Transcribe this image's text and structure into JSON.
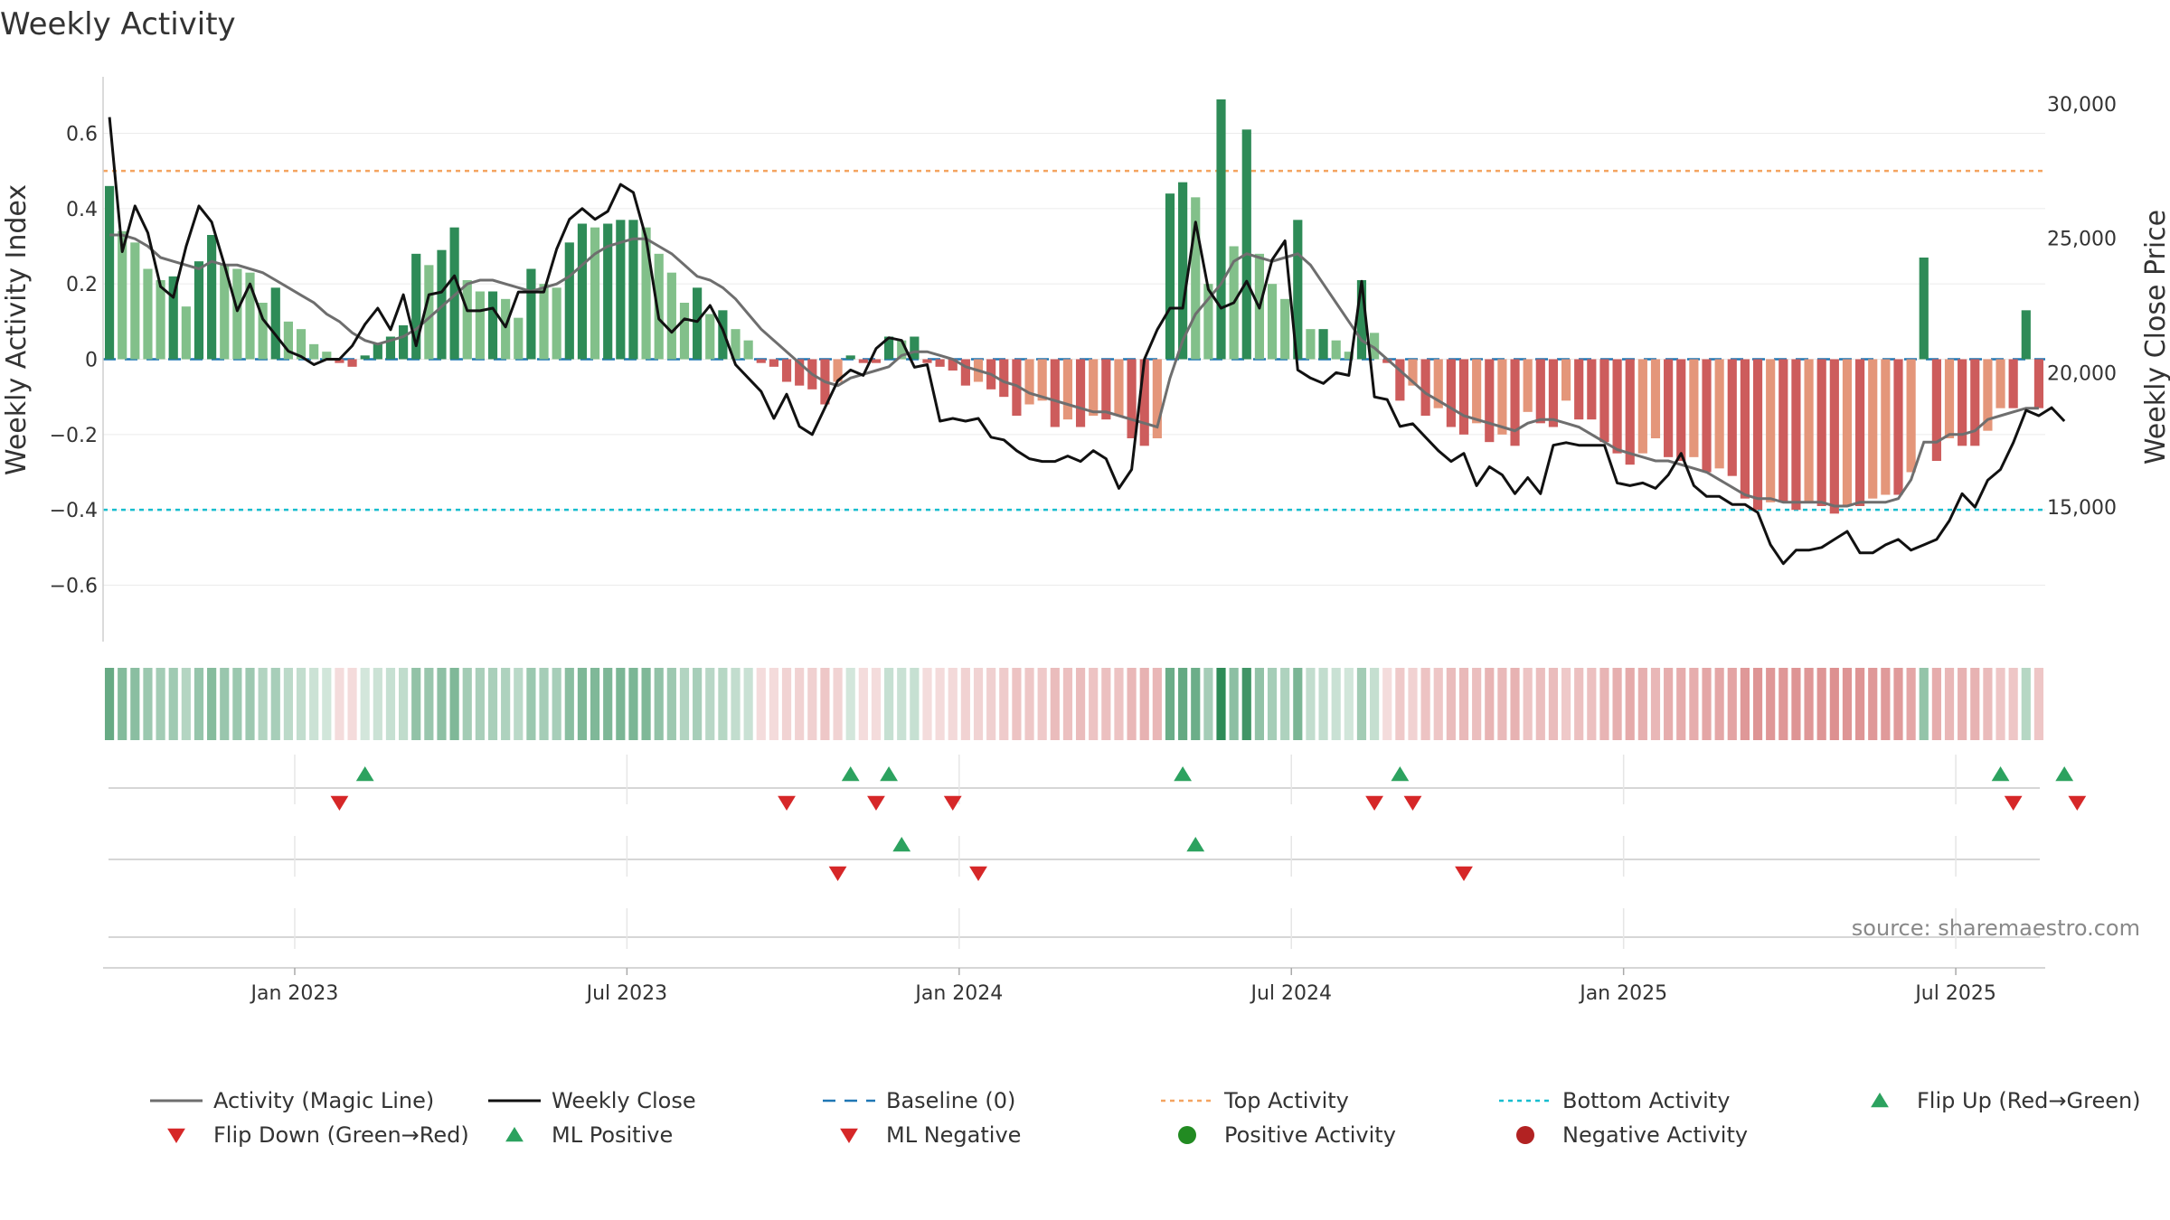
{
  "chart_data": {
    "type": "bar",
    "title": "Weekly Activity",
    "ylabel_left": "Weekly Activity Index",
    "ylabel_right": "Weekly Close Price",
    "ylim_left": [
      -0.75,
      0.75
    ],
    "ylim_right": [
      10000,
      31000
    ],
    "yticks_left": [
      {
        "value": 0.6,
        "label": "0.6"
      },
      {
        "value": 0.4,
        "label": "0.4"
      },
      {
        "value": 0.2,
        "label": "0.2"
      },
      {
        "value": 0,
        "label": "0"
      },
      {
        "value": -0.2,
        "label": "−0.2"
      },
      {
        "value": -0.4,
        "label": "−0.4"
      },
      {
        "value": -0.6,
        "label": "−0.6"
      }
    ],
    "yticks_right": [
      {
        "value": 30000,
        "label": "30,000"
      },
      {
        "value": 25000,
        "label": "25,000"
      },
      {
        "value": 20000,
        "label": "20,000"
      },
      {
        "value": 15000,
        "label": "15,000"
      }
    ],
    "xticks": [
      {
        "week": 15,
        "label": "Jan 2023"
      },
      {
        "week": 41,
        "label": "Jul 2023"
      },
      {
        "week": 67,
        "label": "Jan 2024"
      },
      {
        "week": 93,
        "label": "Jul 2024"
      },
      {
        "week": 119,
        "label": "Jan 2025"
      },
      {
        "week": 145,
        "label": "Jul 2025"
      }
    ],
    "top_activity": 0.5,
    "bottom_activity": -0.4,
    "baseline": 0,
    "activity_index": [
      0.46,
      0.34,
      0.31,
      0.24,
      0.21,
      0.22,
      0.14,
      0.26,
      0.33,
      0.25,
      0.24,
      0.23,
      0.15,
      0.19,
      0.1,
      0.08,
      0.04,
      0.02,
      -0.01,
      -0.02,
      0.01,
      0.04,
      0.06,
      0.09,
      0.28,
      0.25,
      0.29,
      0.35,
      0.21,
      0.18,
      0.18,
      0.16,
      0.11,
      0.24,
      0.2,
      0.19,
      0.31,
      0.36,
      0.35,
      0.36,
      0.37,
      0.37,
      0.35,
      0.28,
      0.23,
      0.15,
      0.19,
      0.12,
      0.13,
      0.08,
      0.05,
      -0.01,
      -0.02,
      -0.06,
      -0.07,
      -0.08,
      -0.12,
      -0.06,
      0.01,
      -0.01,
      -0.01,
      0.06,
      0.05,
      0.06,
      -0.01,
      -0.02,
      -0.03,
      -0.07,
      -0.06,
      -0.08,
      -0.1,
      -0.15,
      -0.12,
      -0.11,
      -0.18,
      -0.16,
      -0.18,
      -0.15,
      -0.16,
      -0.15,
      -0.21,
      -0.23,
      -0.21,
      0.44,
      0.47,
      0.43,
      0.2,
      0.69,
      0.3,
      0.61,
      0.28,
      0.2,
      0.16,
      0.37,
      0.08,
      0.08,
      0.05,
      0.02,
      0.21,
      0.07,
      -0.01,
      -0.11,
      -0.07,
      -0.15,
      -0.13,
      -0.18,
      -0.2,
      -0.17,
      -0.22,
      -0.2,
      -0.23,
      -0.14,
      -0.17,
      -0.18,
      -0.11,
      -0.16,
      -0.16,
      -0.22,
      -0.25,
      -0.28,
      -0.25,
      -0.21,
      -0.26,
      -0.27,
      -0.26,
      -0.3,
      -0.29,
      -0.31,
      -0.37,
      -0.4,
      -0.38,
      -0.38,
      -0.4,
      -0.38,
      -0.39,
      -0.41,
      -0.39,
      -0.39,
      -0.37,
      -0.36,
      -0.36,
      -0.3,
      0.27,
      -0.27,
      -0.21,
      -0.23,
      -0.23,
      -0.19,
      -0.13,
      -0.13,
      0.13,
      -0.13
    ],
    "magic_line": [
      0.33,
      0.33,
      0.32,
      0.3,
      0.27,
      0.26,
      0.25,
      0.24,
      0.26,
      0.25,
      0.25,
      0.24,
      0.23,
      0.21,
      0.19,
      0.17,
      0.15,
      0.12,
      0.1,
      0.07,
      0.05,
      0.04,
      0.05,
      0.06,
      0.08,
      0.11,
      0.14,
      0.17,
      0.2,
      0.21,
      0.21,
      0.2,
      0.19,
      0.18,
      0.19,
      0.2,
      0.22,
      0.25,
      0.28,
      0.3,
      0.31,
      0.32,
      0.32,
      0.3,
      0.28,
      0.25,
      0.22,
      0.21,
      0.19,
      0.16,
      0.12,
      0.08,
      0.05,
      0.02,
      -0.01,
      -0.04,
      -0.06,
      -0.07,
      -0.05,
      -0.04,
      -0.03,
      -0.02,
      0.01,
      0.02,
      0.02,
      0.01,
      0.0,
      -0.02,
      -0.03,
      -0.04,
      -0.06,
      -0.07,
      -0.09,
      -0.1,
      -0.11,
      -0.12,
      -0.13,
      -0.14,
      -0.14,
      -0.15,
      -0.16,
      -0.17,
      -0.18,
      -0.05,
      0.05,
      0.12,
      0.16,
      0.2,
      0.26,
      0.28,
      0.27,
      0.26,
      0.27,
      0.28,
      0.25,
      0.2,
      0.15,
      0.1,
      0.05,
      0.03,
      0.0,
      -0.03,
      -0.06,
      -0.09,
      -0.11,
      -0.13,
      -0.15,
      -0.16,
      -0.17,
      -0.18,
      -0.19,
      -0.17,
      -0.16,
      -0.16,
      -0.17,
      -0.18,
      -0.2,
      -0.22,
      -0.24,
      -0.25,
      -0.26,
      -0.27,
      -0.27,
      -0.28,
      -0.29,
      -0.3,
      -0.32,
      -0.34,
      -0.36,
      -0.37,
      -0.37,
      -0.38,
      -0.38,
      -0.38,
      -0.38,
      -0.39,
      -0.39,
      -0.38,
      -0.38,
      -0.38,
      -0.37,
      -0.32,
      -0.22,
      -0.22,
      -0.2,
      -0.2,
      -0.19,
      -0.16,
      -0.15,
      -0.14,
      -0.13,
      -0.13
    ],
    "weekly_close": [
      29500,
      24500,
      26200,
      25200,
      23200,
      22800,
      24700,
      26200,
      25600,
      24000,
      22300,
      23300,
      22000,
      21400,
      20800,
      20600,
      20300,
      20500,
      20500,
      21000,
      21800,
      22400,
      21600,
      22900,
      21000,
      22900,
      23000,
      23600,
      22300,
      22300,
      22400,
      21700,
      23000,
      23000,
      23000,
      24600,
      25700,
      26100,
      25700,
      26000,
      27000,
      26700,
      25000,
      22000,
      21500,
      22000,
      21900,
      22500,
      21600,
      20300,
      19800,
      19300,
      18300,
      19200,
      18000,
      17700,
      18700,
      19700,
      20100,
      19900,
      20900,
      21300,
      21200,
      20200,
      20300,
      18200,
      18300,
      18200,
      18300,
      17600,
      17500,
      17100,
      16800,
      16700,
      16700,
      16900,
      16700,
      17100,
      16800,
      15700,
      16400,
      20500,
      21600,
      22400,
      22400,
      25600,
      23100,
      22400,
      22600,
      23400,
      22400,
      24200,
      24900,
      20100,
      19800,
      19600,
      20000,
      19900,
      23400,
      19100,
      19000,
      18000,
      18100,
      17600,
      17100,
      16700,
      17000,
      15800,
      16500,
      16200,
      15500,
      16100,
      15500,
      17300,
      17400,
      17300,
      17300,
      17300,
      15900,
      15800,
      15900,
      15700,
      16200,
      17000,
      15800,
      15400,
      15400,
      15100,
      15100,
      14800,
      13600,
      12900,
      13400,
      13400,
      13500,
      13800,
      14100,
      13300,
      13300,
      13600,
      13800,
      13400,
      13600,
      13800,
      14500,
      15500,
      15000,
      16000,
      16400,
      17400,
      18600,
      18400,
      18700,
      18200
    ],
    "flip_up_weeks": [
      20,
      58,
      61,
      84,
      101,
      148,
      153
    ],
    "flip_down_weeks": [
      18,
      53,
      60,
      66,
      99,
      102,
      149,
      154
    ],
    "ml_positive_weeks": [
      62,
      85
    ],
    "ml_negative_weeks": [
      57,
      68,
      106
    ],
    "legend": [
      {
        "key": "activity_line",
        "label": "Activity (Magic Line)"
      },
      {
        "key": "weekly_close",
        "label": "Weekly Close"
      },
      {
        "key": "baseline",
        "label": "Baseline (0)"
      },
      {
        "key": "top_activity",
        "label": "Top Activity"
      },
      {
        "key": "bottom_activity",
        "label": "Bottom Activity"
      },
      {
        "key": "flip_up",
        "label": "Flip Up (Red→Green)"
      },
      {
        "key": "flip_down",
        "label": "Flip Down (Green→Red)"
      },
      {
        "key": "ml_positive",
        "label": "ML Positive"
      },
      {
        "key": "ml_negative",
        "label": "ML Negative"
      },
      {
        "key": "positive_activity",
        "label": "Positive Activity"
      },
      {
        "key": "negative_activity",
        "label": "Negative Activity"
      }
    ],
    "source": "source: sharemaestro.com"
  },
  "colors": {
    "pos_strong": "#2e8b57",
    "pos_light": "#82c08a",
    "neg_strong": "#cd5c5c",
    "neg_light": "#e4967a",
    "magic_line": "#6e6e6e",
    "close_line": "#111111",
    "baseline": "#1f77b4",
    "top_line": "#f4a460",
    "bottom_line": "#17becf",
    "up_marker": "#2ca25f",
    "down_marker": "#d62728",
    "pos_dot": "#228b22",
    "neg_dot": "#b22222"
  }
}
